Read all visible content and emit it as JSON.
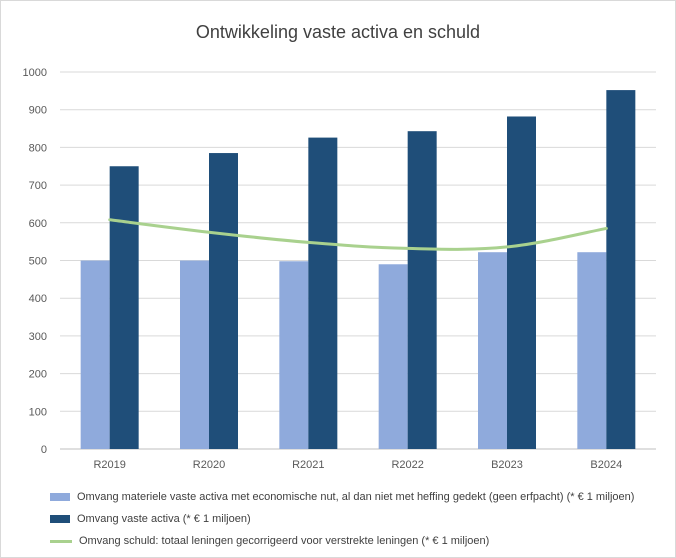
{
  "chart_data": {
    "type": "bar",
    "title": "Ontwikkeling vaste activa en schuld",
    "categories": [
      "R2019",
      "R2020",
      "R2021",
      "R2022",
      "B2023",
      "B2024"
    ],
    "ylim": [
      0,
      1000
    ],
    "yticks": [
      "0",
      "100",
      "200",
      "300",
      "400",
      "500",
      "600",
      "700",
      "800",
      "900",
      "1000"
    ],
    "grid": true,
    "legend_position": "bottom",
    "series": [
      {
        "name": "Omvang materiele vaste activa met economische nut, al dan niet met heffing gedekt (geen erfpacht) (* € 1 miljoen)",
        "kind": "bar",
        "color": "#8faadc",
        "values": [
          500,
          500,
          498,
          490,
          522,
          522
        ]
      },
      {
        "name": "Omvang vaste activa (* € 1 miljoen)",
        "kind": "bar",
        "color": "#1f4e79",
        "values": [
          750,
          785,
          826,
          843,
          882,
          952
        ]
      },
      {
        "name": "Omvang schuld: totaal leningen gecorrigeerd voor verstrekte leningen (* € 1 miljoen)",
        "kind": "line",
        "color": "#a9d18e",
        "values": [
          608,
          575,
          548,
          532,
          536,
          585
        ]
      }
    ]
  }
}
